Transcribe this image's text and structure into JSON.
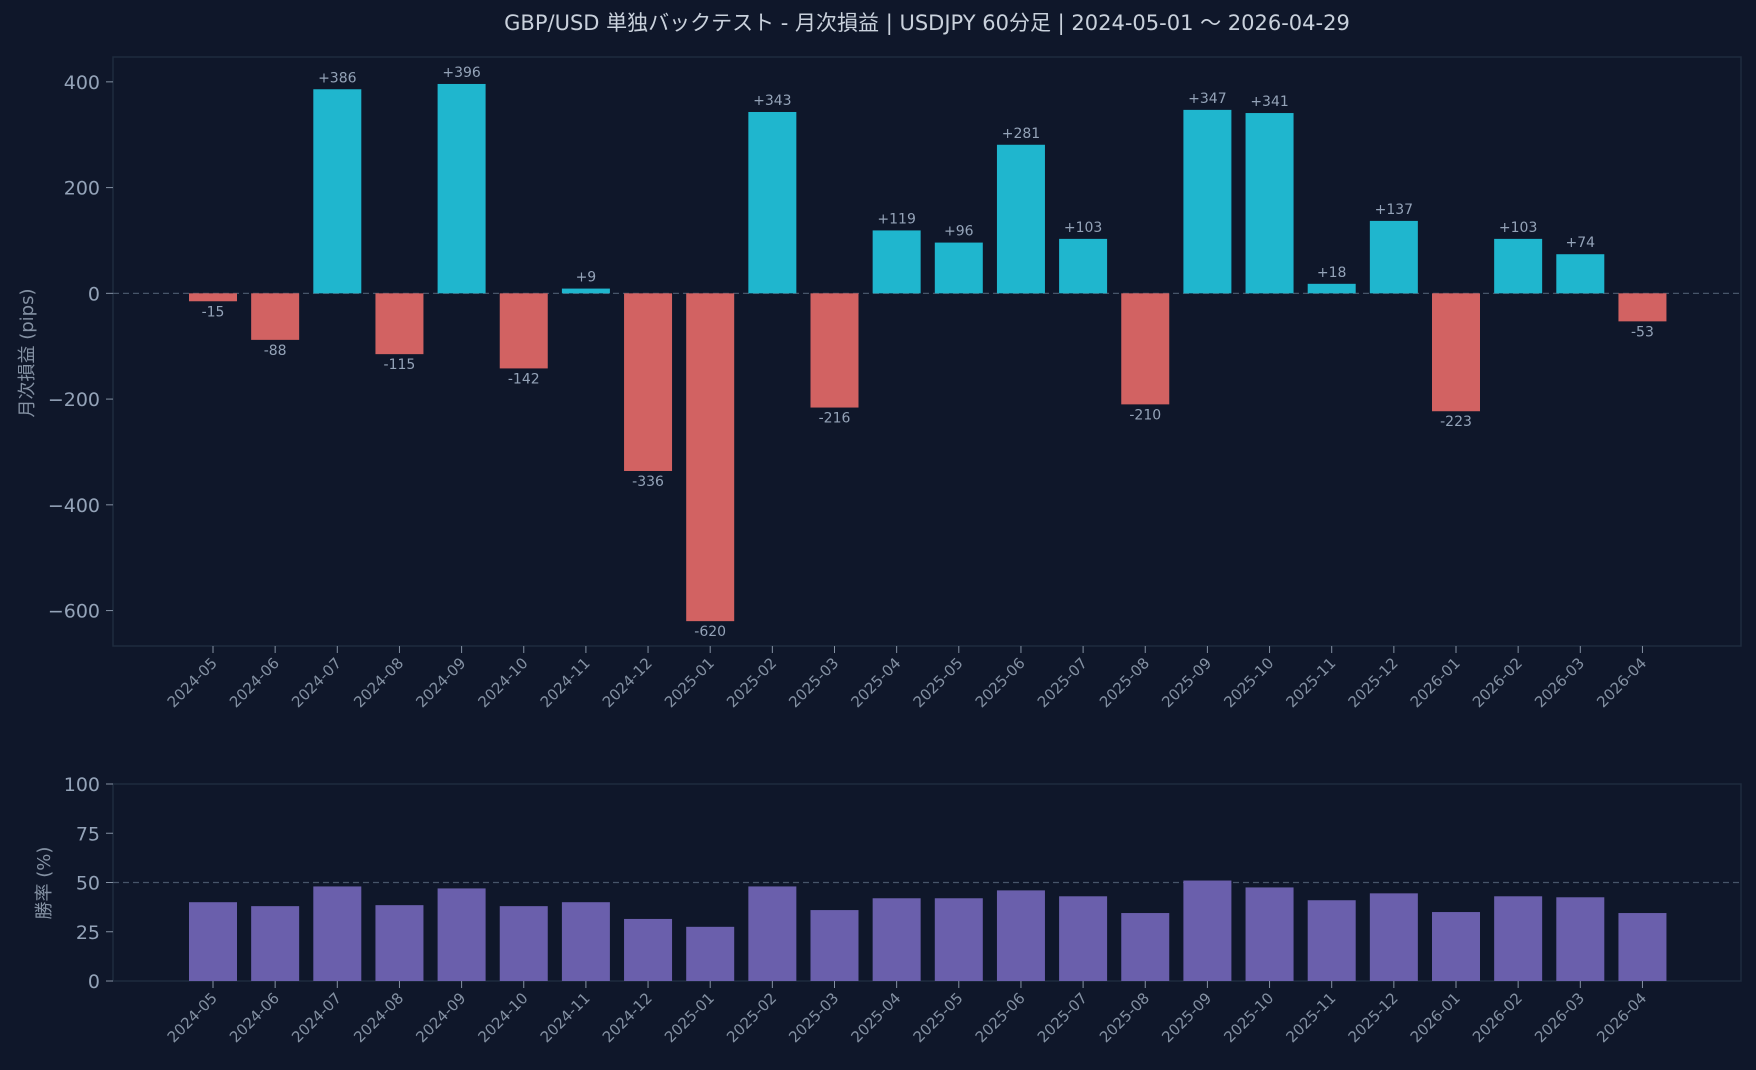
{
  "title": "GBP/USD 単独バックテスト - 月次損益 | USDJPY 60分足 | 2024-05-01 〜 2026-04-29",
  "colors": {
    "background": "#0f172a",
    "positive": "#1fb6ce",
    "negative": "#d26262",
    "win_rate": "#6a5fac"
  },
  "chart_data": [
    {
      "type": "bar",
      "ylabel": "月次損益 (pips)",
      "ylim": [
        -667,
        447
      ],
      "yticks": [
        400,
        200,
        0,
        -200,
        -400,
        -600
      ],
      "ytick_labels": [
        "400",
        "200",
        "0",
        "−200",
        "−400",
        "−600"
      ],
      "reference_line": 0,
      "grid": false,
      "categories": [
        "2024-05",
        "2024-06",
        "2024-07",
        "2024-08",
        "2024-09",
        "2024-10",
        "2024-11",
        "2024-12",
        "2025-01",
        "2025-02",
        "2025-03",
        "2025-04",
        "2025-05",
        "2025-06",
        "2025-07",
        "2025-08",
        "2025-09",
        "2025-10",
        "2025-11",
        "2025-12",
        "2026-01",
        "2026-02",
        "2026-03",
        "2026-04"
      ],
      "values": [
        -15,
        -88,
        386,
        -115,
        396,
        -142,
        9,
        -336,
        -620,
        343,
        -216,
        119,
        96,
        281,
        103,
        -210,
        347,
        341,
        18,
        137,
        -223,
        103,
        74,
        -53
      ],
      "data_labels": [
        "-15",
        "-88",
        "+386",
        "-115",
        "+396",
        "-142",
        "+9",
        "-336",
        "-620",
        "+343",
        "-216",
        "+119",
        "+96",
        "+281",
        "+103",
        "-210",
        "+347",
        "+341",
        "+18",
        "+137",
        "-223",
        "+103",
        "+74",
        "-53"
      ]
    },
    {
      "type": "bar",
      "ylabel": "勝率 (%)",
      "ylim": [
        0,
        100
      ],
      "yticks": [
        100,
        75,
        50,
        25,
        0
      ],
      "ytick_labels": [
        "100",
        "75",
        "50",
        "25",
        "0"
      ],
      "reference_line": 50,
      "grid": false,
      "categories": [
        "2024-05",
        "2024-06",
        "2024-07",
        "2024-08",
        "2024-09",
        "2024-10",
        "2024-11",
        "2024-12",
        "2025-01",
        "2025-02",
        "2025-03",
        "2025-04",
        "2025-05",
        "2025-06",
        "2025-07",
        "2025-08",
        "2025-09",
        "2025-10",
        "2025-11",
        "2025-12",
        "2026-01",
        "2026-02",
        "2026-03",
        "2026-04"
      ],
      "values": [
        40,
        38,
        48,
        38.5,
        47,
        38,
        40,
        31.5,
        27.5,
        48,
        36,
        42,
        42,
        46,
        43,
        34.5,
        51,
        47.5,
        41,
        44.5,
        35,
        43,
        42.5,
        34.5
      ]
    }
  ]
}
